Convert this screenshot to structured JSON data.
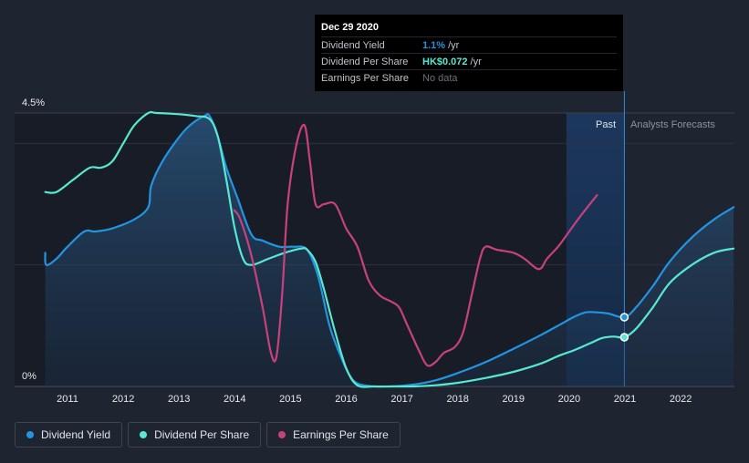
{
  "chart_data": {
    "type": "line",
    "y_axis": {
      "ticks": [
        "4.5%",
        "0%"
      ],
      "ylim": [
        0,
        4.5
      ],
      "unit": "%"
    },
    "x_axis": {
      "tick_labels": [
        "2011",
        "2012",
        "2013",
        "2014",
        "2015",
        "2016",
        "2017",
        "2018",
        "2019",
        "2020",
        "2021",
        "2022"
      ],
      "xlim": [
        2010.6,
        2022.95
      ]
    },
    "regions": {
      "past_label": "Past",
      "forecast_label": "Analysts Forecasts",
      "divider_x": 2020.99
    },
    "series": [
      {
        "name": "Dividend Yield",
        "color": "#2394df",
        "x": [
          2010.6,
          2010.62,
          2010.8,
          2011.0,
          2011.3,
          2011.5,
          2011.8,
          2012.2,
          2012.45,
          2012.5,
          2012.7,
          2013.0,
          2013.2,
          2013.45,
          2013.55,
          2013.7,
          2013.85,
          2014.05,
          2014.3,
          2014.5,
          2014.8,
          2015.05,
          2015.3,
          2015.5,
          2015.7,
          2015.9,
          2016.05,
          2016.2,
          2016.5,
          2016.8,
          2017.2,
          2017.6,
          2018.0,
          2018.5,
          2019.0,
          2019.5,
          2019.8,
          2020.1,
          2020.3,
          2020.5,
          2020.7,
          2020.99,
          2021.2,
          2021.5,
          2021.8,
          2022.2,
          2022.6,
          2022.95
        ],
        "y": [
          2.2,
          2.0,
          2.1,
          2.3,
          2.55,
          2.55,
          2.6,
          2.75,
          2.95,
          3.3,
          3.7,
          4.1,
          4.3,
          4.45,
          4.45,
          4.1,
          3.6,
          3.1,
          2.5,
          2.4,
          2.3,
          2.3,
          2.25,
          1.8,
          1.0,
          0.5,
          0.2,
          0.05,
          0.0,
          0.0,
          0.03,
          0.1,
          0.22,
          0.4,
          0.62,
          0.85,
          1.0,
          1.15,
          1.22,
          1.22,
          1.2,
          1.14,
          1.3,
          1.65,
          2.05,
          2.45,
          2.75,
          2.95
        ]
      },
      {
        "name": "Dividend Per Share",
        "color": "#58e8d1",
        "x": [
          2010.6,
          2010.8,
          2011.1,
          2011.4,
          2011.6,
          2011.8,
          2012.0,
          2012.2,
          2012.45,
          2012.6,
          2013.0,
          2013.3,
          2013.55,
          2013.7,
          2013.85,
          2014.0,
          2014.15,
          2014.3,
          2014.6,
          2014.9,
          2015.2,
          2015.3,
          2015.45,
          2015.6,
          2015.8,
          2016.0,
          2016.2,
          2016.5,
          2016.8,
          2017.2,
          2017.6,
          2018.0,
          2018.5,
          2019.0,
          2019.5,
          2019.8,
          2020.1,
          2020.4,
          2020.6,
          2020.8,
          2020.99,
          2021.2,
          2021.5,
          2021.8,
          2022.2,
          2022.6,
          2022.95
        ],
        "y": [
          3.2,
          3.2,
          3.4,
          3.6,
          3.6,
          3.7,
          4.0,
          4.3,
          4.5,
          4.5,
          4.48,
          4.45,
          4.4,
          4.1,
          3.4,
          2.6,
          2.1,
          2.0,
          2.1,
          2.2,
          2.27,
          2.25,
          2.05,
          1.6,
          0.9,
          0.3,
          0.02,
          0.0,
          0.0,
          0.0,
          0.02,
          0.06,
          0.14,
          0.24,
          0.38,
          0.5,
          0.6,
          0.72,
          0.8,
          0.82,
          0.81,
          0.95,
          1.3,
          1.7,
          2.0,
          2.2,
          2.27
        ]
      },
      {
        "name": "Earnings Per Share",
        "color": "#c7417d",
        "x": [
          2013.99,
          2014.1,
          2014.3,
          2014.5,
          2014.65,
          2014.75,
          2014.85,
          2014.95,
          2015.1,
          2015.25,
          2015.35,
          2015.45,
          2015.6,
          2015.8,
          2016.0,
          2016.2,
          2016.4,
          2016.6,
          2016.8,
          2016.95,
          2017.1,
          2017.3,
          2017.45,
          2017.6,
          2017.75,
          2017.95,
          2018.1,
          2018.25,
          2018.4,
          2018.5,
          2018.7,
          2019.0,
          2019.2,
          2019.4,
          2019.5,
          2019.6,
          2019.8,
          2020.0,
          2020.2,
          2020.5
        ],
        "y": [
          2.9,
          2.75,
          2.15,
          1.3,
          0.55,
          0.5,
          1.5,
          3.0,
          3.95,
          4.3,
          3.7,
          3.0,
          3.0,
          3.0,
          2.6,
          2.3,
          1.75,
          1.5,
          1.4,
          1.3,
          1.0,
          0.6,
          0.35,
          0.4,
          0.55,
          0.65,
          0.9,
          1.5,
          2.1,
          2.3,
          2.25,
          2.2,
          2.1,
          1.95,
          1.95,
          2.1,
          2.3,
          2.55,
          2.8,
          3.15
        ]
      }
    ],
    "markers": [
      {
        "series": "Dividend Yield",
        "x": 2020.99,
        "y": 1.14
      },
      {
        "series": "Dividend Per Share",
        "x": 2020.99,
        "y": 0.81
      }
    ]
  },
  "tooltip": {
    "date": "Dec 29 2020",
    "rows": [
      {
        "label": "Dividend Yield",
        "value": "1.1%",
        "unit": "/yr",
        "color": "#2394df"
      },
      {
        "label": "Dividend Per Share",
        "value": "HK$0.072",
        "unit": "/yr",
        "color": "#58e8d1"
      },
      {
        "label": "Earnings Per Share",
        "value": "No data",
        "unit": "",
        "color": "#6b707c"
      }
    ]
  },
  "legend": [
    {
      "label": "Dividend Yield",
      "color": "#2394df"
    },
    {
      "label": "Dividend Per Share",
      "color": "#58e8d1"
    },
    {
      "label": "Earnings Per Share",
      "color": "#c7417d"
    }
  ]
}
